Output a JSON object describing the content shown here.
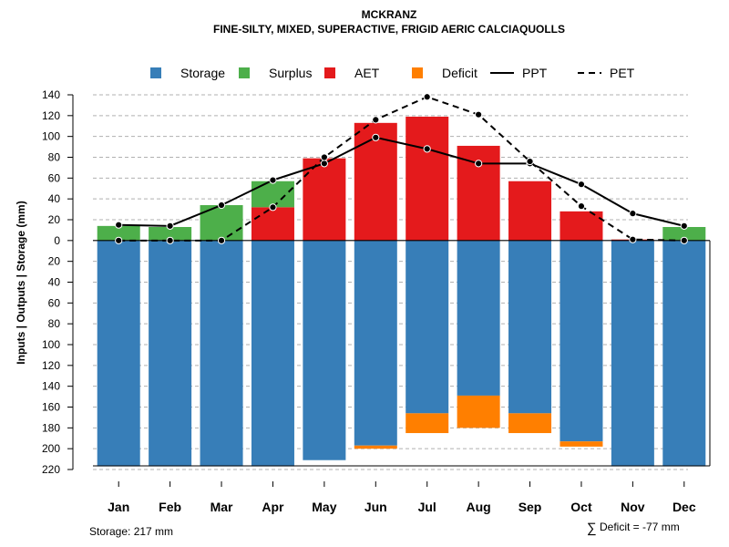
{
  "chart_data": {
    "type": "bar",
    "title": "MCKRANZ",
    "subtitle": "FINE-SILTY, MIXED, SUPERACTIVE, FRIGID AERIC CALCIAQUOLLS",
    "ylabel": "Inputs | Outputs | Storage    (mm)",
    "ylim": [
      -220,
      140
    ],
    "y_ticks": [
      140,
      120,
      100,
      80,
      60,
      40,
      20,
      0,
      -20,
      -40,
      -60,
      -80,
      -100,
      -120,
      -140,
      -160,
      -180,
      -200,
      -220
    ],
    "y_tick_labels": [
      "140",
      "120",
      "100",
      "80",
      "60",
      "40",
      "20",
      "0",
      "20",
      "40",
      "60",
      "80",
      "100",
      "120",
      "140",
      "160",
      "180",
      "200",
      "220"
    ],
    "categories": [
      "Jan",
      "Feb",
      "Mar",
      "Apr",
      "May",
      "Jun",
      "Jul",
      "Aug",
      "Sep",
      "Oct",
      "Nov",
      "Dec"
    ],
    "legend": [
      {
        "label": "Storage",
        "kind": "square",
        "color": "#377EB8"
      },
      {
        "label": "Surplus",
        "kind": "square",
        "color": "#4DAF4A"
      },
      {
        "label": "AET",
        "kind": "square",
        "color": "#E41A1C"
      },
      {
        "label": "Deficit",
        "kind": "square",
        "color": "#FF7F00"
      },
      {
        "label": "PPT",
        "kind": "solid-line",
        "color": "#000000"
      },
      {
        "label": "PET",
        "kind": "dashed-line",
        "color": "#000000"
      }
    ],
    "series": [
      {
        "name": "Storage",
        "color": "#377EB8",
        "values": [
          217,
          217,
          217,
          217,
          211,
          197,
          166,
          149,
          166,
          193,
          217,
          217
        ]
      },
      {
        "name": "Deficit",
        "color": "#FF7F00",
        "values": [
          0,
          0,
          0,
          0,
          0,
          3,
          19,
          31,
          19,
          5,
          0,
          0
        ]
      },
      {
        "name": "AET",
        "color": "#E41A1C",
        "values": [
          0,
          0,
          0,
          32,
          79,
          113,
          119,
          91,
          57,
          28,
          1,
          0
        ]
      },
      {
        "name": "Surplus",
        "color": "#4DAF4A",
        "values": [
          14,
          13,
          34,
          25,
          0,
          0,
          0,
          0,
          0,
          0,
          0,
          13
        ]
      },
      {
        "name": "PPT",
        "color": "#000000",
        "style": "solid",
        "values": [
          15,
          14,
          34,
          58,
          74,
          99,
          88,
          74,
          74,
          54,
          26,
          14
        ]
      },
      {
        "name": "PET",
        "color": "#000000",
        "style": "dashed",
        "values": [
          0,
          0,
          0,
          32,
          80,
          116,
          138,
          121,
          76,
          33,
          1,
          0
        ]
      }
    ],
    "grid": true
  },
  "footer": {
    "storage": "Storage: 217 mm",
    "deficit_symbol": "∑",
    "deficit": "Deficit = -77 mm"
  }
}
